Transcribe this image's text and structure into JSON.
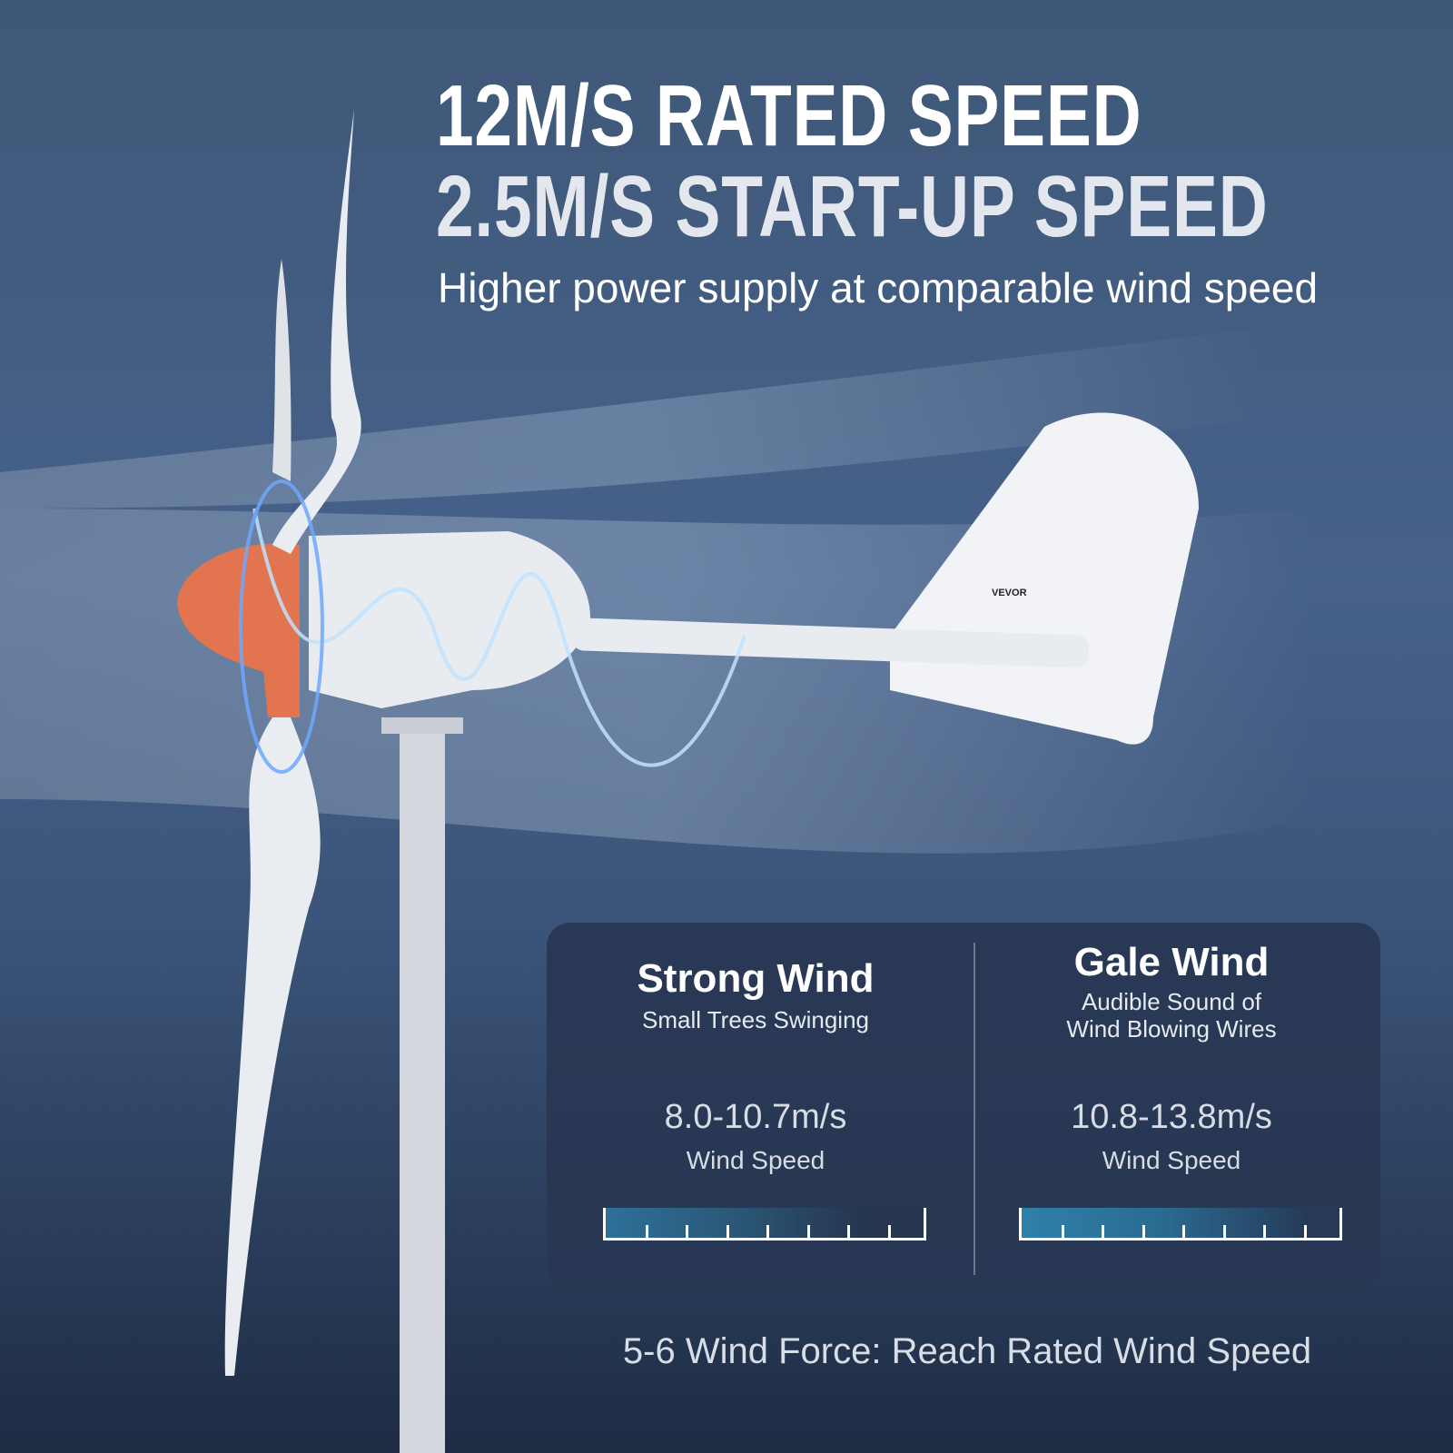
{
  "headline": {
    "line1": "12M/S RATED SPEED",
    "line2": "2.5M/S START-UP SPEED",
    "subtitle": "Higher power supply at comparable wind speed"
  },
  "product": {
    "brand_label": "VEVOR",
    "hub_color": "#e2744f"
  },
  "panel": {
    "columns": [
      {
        "title": "Strong Wind",
        "description": [
          "Small Trees Swinging"
        ],
        "speed": "8.0-10.7m/s",
        "speed_label": "Wind Speed",
        "gauge_fill_intensity": "low"
      },
      {
        "title": "Gale Wind",
        "description": [
          "Audible Sound of",
          "Wind Blowing Wires"
        ],
        "speed": "10.8-13.8m/s",
        "speed_label": "Wind Speed",
        "gauge_fill_intensity": "high"
      }
    ]
  },
  "footer": "5-6 Wind Force: Reach Rated Wind Speed"
}
